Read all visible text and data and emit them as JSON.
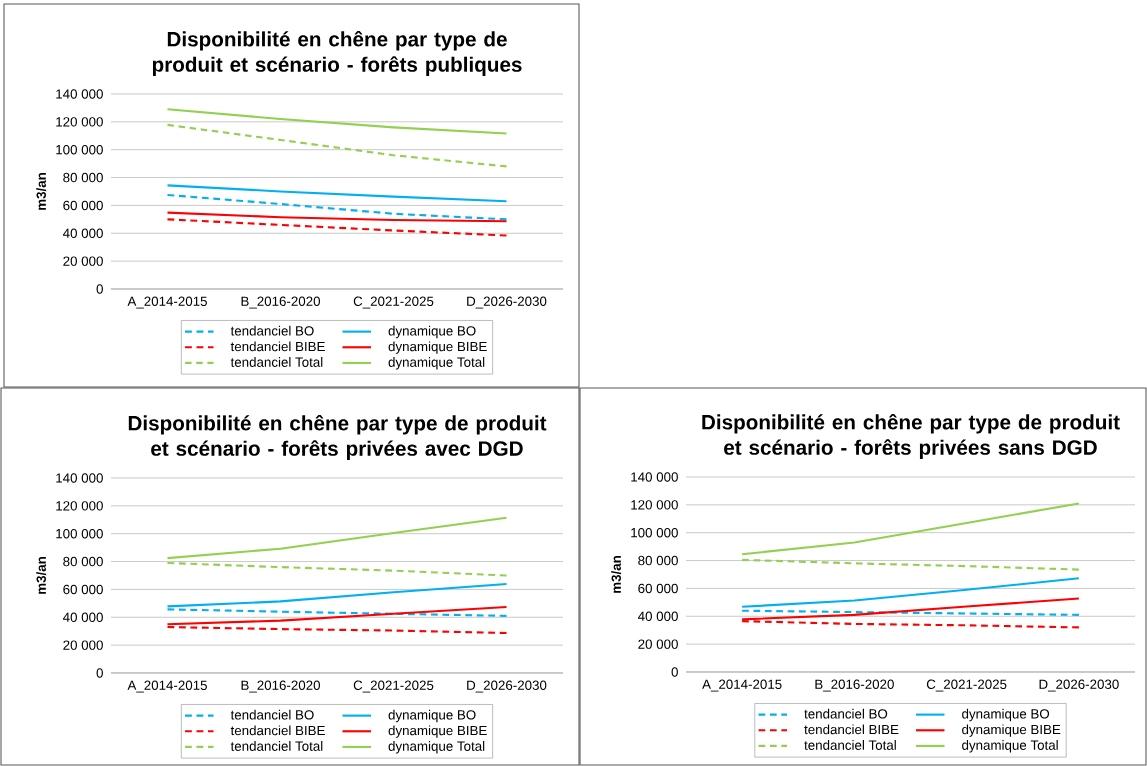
{
  "chart_data": [
    {
      "type": "line",
      "title": "Disponibilité en chêne par type de produit et scénario - forêts publiques",
      "ylabel": "m3/an",
      "categories": [
        "A_2014-2015",
        "B_2016-2020",
        "C_2021-2025",
        "D_2026-2030"
      ],
      "ylim": [
        0,
        140000
      ],
      "yticks": [
        {
          "value": 0,
          "label": "0"
        },
        {
          "value": 20000,
          "label": "20 000"
        },
        {
          "value": 40000,
          "label": "40 000"
        },
        {
          "value": 60000,
          "label": "60 000"
        },
        {
          "value": 80000,
          "label": "80 000"
        },
        {
          "value": 100000,
          "label": "100 000"
        },
        {
          "value": 120000,
          "label": "120 000"
        },
        {
          "value": 140000,
          "label": "140 000"
        }
      ],
      "grid": "y",
      "legend": "bottom",
      "marker": "none",
      "series": [
        {
          "name": "tendanciel BO",
          "color": "#00b0f0",
          "line_style": "dashed",
          "values": [
            67500,
            61000,
            54000,
            50000
          ]
        },
        {
          "name": "dynamique BO",
          "color": "#00b0f0",
          "line_style": "solid",
          "values": [
            74400,
            70000,
            66300,
            63000
          ]
        },
        {
          "name": "tendanciel BIBE",
          "color": "#ff0000",
          "line_style": "dashed",
          "values": [
            50000,
            46000,
            42000,
            38400
          ]
        },
        {
          "name": "dynamique BIBE",
          "color": "#ff0000",
          "line_style": "solid",
          "values": [
            54800,
            51500,
            49500,
            48600
          ]
        },
        {
          "name": "tendanciel Total",
          "color": "#92d050",
          "line_style": "dashed",
          "values": [
            117800,
            107000,
            96000,
            88000
          ]
        },
        {
          "name": "dynamique Total",
          "color": "#92d050",
          "line_style": "solid",
          "values": [
            129000,
            122000,
            116000,
            111600
          ]
        }
      ]
    },
    {
      "type": "line",
      "title": "Disponibilité en chêne par type de produit et scénario - forêts privées avec DGD",
      "ylabel": "m3/an",
      "categories": [
        "A_2014-2015",
        "B_2016-2020",
        "C_2021-2025",
        "D_2026-2030"
      ],
      "ylim": [
        0,
        140000
      ],
      "yticks": [
        {
          "value": 0,
          "label": "0"
        },
        {
          "value": 20000,
          "label": "20 000"
        },
        {
          "value": 40000,
          "label": "40 000"
        },
        {
          "value": 60000,
          "label": "60 000"
        },
        {
          "value": 80000,
          "label": "80 000"
        },
        {
          "value": 100000,
          "label": "100 000"
        },
        {
          "value": 120000,
          "label": "120 000"
        },
        {
          "value": 140000,
          "label": "140 000"
        }
      ],
      "grid": "y",
      "legend": "bottom",
      "marker": "none",
      "series": [
        {
          "name": "tendanciel BO",
          "color": "#00b0f0",
          "line_style": "dashed",
          "values": [
            45700,
            44000,
            42500,
            41000
          ]
        },
        {
          "name": "dynamique BO",
          "color": "#00b0f0",
          "line_style": "solid",
          "values": [
            47800,
            51400,
            58000,
            63900
          ]
        },
        {
          "name": "tendanciel BIBE",
          "color": "#ff0000",
          "line_style": "dashed",
          "values": [
            33000,
            31500,
            30500,
            28700
          ]
        },
        {
          "name": "dynamique BIBE",
          "color": "#ff0000",
          "line_style": "solid",
          "values": [
            35000,
            37600,
            42500,
            47400
          ]
        },
        {
          "name": "tendanciel Total",
          "color": "#92d050",
          "line_style": "dashed",
          "values": [
            79000,
            76000,
            73500,
            70000
          ]
        },
        {
          "name": "dynamique Total",
          "color": "#92d050",
          "line_style": "solid",
          "values": [
            82500,
            89200,
            100500,
            111500
          ]
        }
      ]
    },
    {
      "type": "line",
      "title": "Disponibilité en chêne par type de produit et scénario - forêts privées sans DGD",
      "ylabel": "m3/an",
      "categories": [
        "A_2014-2015",
        "B_2016-2020",
        "C_2021-2025",
        "D_2026-2030"
      ],
      "ylim": [
        0,
        140000
      ],
      "yticks": [
        {
          "value": 0,
          "label": "0"
        },
        {
          "value": 20000,
          "label": "20 000"
        },
        {
          "value": 40000,
          "label": "40 000"
        },
        {
          "value": 60000,
          "label": "60 000"
        },
        {
          "value": 80000,
          "label": "80 000"
        },
        {
          "value": 100000,
          "label": "100 000"
        },
        {
          "value": 120000,
          "label": "120 000"
        },
        {
          "value": 140000,
          "label": "140 000"
        }
      ],
      "grid": "y",
      "legend": "bottom",
      "marker": "none",
      "series": [
        {
          "name": "tendanciel BO",
          "color": "#00b0f0",
          "line_style": "dashed",
          "values": [
            44000,
            43000,
            42000,
            41000
          ]
        },
        {
          "name": "dynamique BO",
          "color": "#00b0f0",
          "line_style": "solid",
          "values": [
            46800,
            51300,
            59000,
            67300
          ]
        },
        {
          "name": "tendanciel BIBE",
          "color": "#ff0000",
          "line_style": "dashed",
          "values": [
            36500,
            34500,
            33500,
            32000
          ]
        },
        {
          "name": "dynamique BIBE",
          "color": "#ff0000",
          "line_style": "solid",
          "values": [
            37800,
            41000,
            47000,
            52800
          ]
        },
        {
          "name": "tendanciel Total",
          "color": "#92d050",
          "line_style": "dashed",
          "values": [
            80500,
            78000,
            76000,
            73500
          ]
        },
        {
          "name": "dynamique Total",
          "color": "#92d050",
          "line_style": "solid",
          "values": [
            84500,
            93000,
            107000,
            121000
          ]
        }
      ]
    }
  ]
}
